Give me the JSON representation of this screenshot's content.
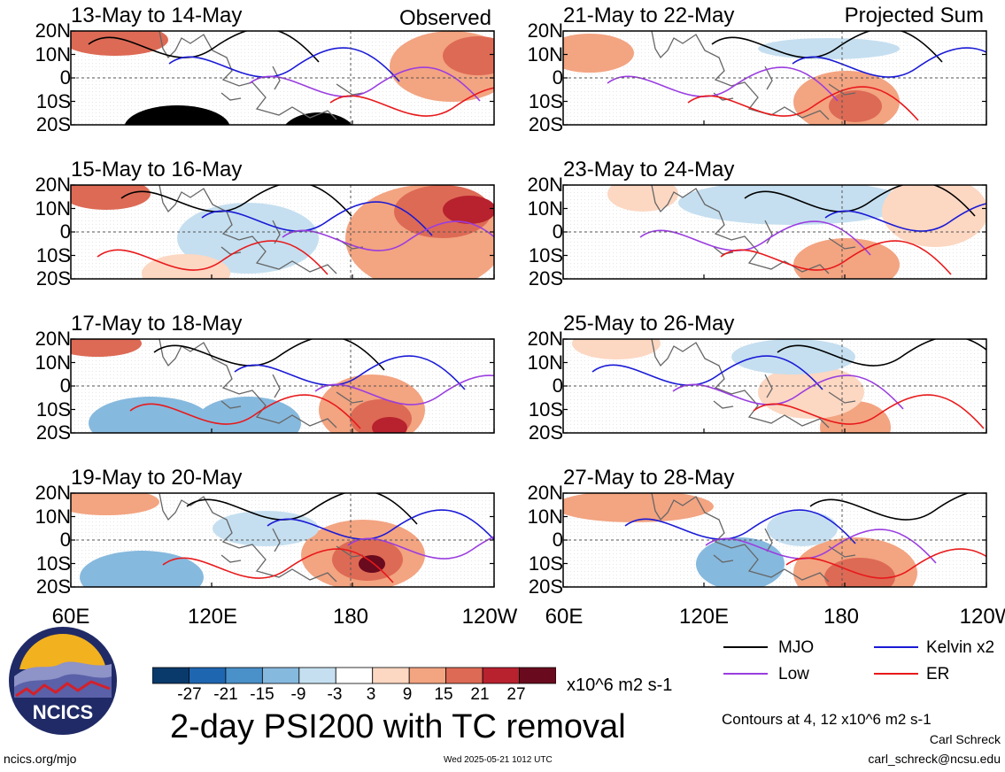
{
  "main_title": "2-day PSI200 with TC removal",
  "panel_labels": {
    "left": "Observed",
    "right": "Projected Sum"
  },
  "panels": [
    {
      "title": "13-May to 14-May",
      "column": "left"
    },
    {
      "title": "15-May to 16-May",
      "column": "left"
    },
    {
      "title": "17-May to 18-May",
      "column": "left"
    },
    {
      "title": "19-May to 20-May",
      "column": "left"
    },
    {
      "title": "21-May to 22-May",
      "column": "right"
    },
    {
      "title": "23-May to 24-May",
      "column": "right"
    },
    {
      "title": "25-May to 26-May",
      "column": "right"
    },
    {
      "title": "27-May to 28-May",
      "column": "right"
    }
  ],
  "lat_labels": [
    "20N",
    "10N",
    "0",
    "10S",
    "20S"
  ],
  "lon_labels": [
    "60E",
    "120E",
    "180",
    "120W"
  ],
  "colorbar": {
    "ticks": [
      "-27",
      "-21",
      "-15",
      "-9",
      "-3",
      "3",
      "9",
      "15",
      "21",
      "27"
    ],
    "colors": [
      "#0a3a6b",
      "#1f66b1",
      "#4a90c9",
      "#86b9de",
      "#c5dff0",
      "#ffffff",
      "#fcd7c2",
      "#f3a481",
      "#dd6a55",
      "#b8212e",
      "#6a0a1e"
    ],
    "units": "x10^6 m2 s-1"
  },
  "legend": [
    {
      "label": "MJO",
      "color": "#000000"
    },
    {
      "label": "Kelvin x2",
      "color": "#1a1ad6"
    },
    {
      "label": "Low",
      "color": "#9a3ddf"
    },
    {
      "label": "ER",
      "color": "#e8191b"
    }
  ],
  "contour_note": "Contours at 4, 12 x10^6 m2 s-1",
  "author": "Carl Schreck",
  "email": "carl_schreck@ncsu.edu",
  "logo_text": "NCICS",
  "site": "ncics.org/mjo",
  "timestamp": "Wed 2025-05-21 1012 UTC"
}
